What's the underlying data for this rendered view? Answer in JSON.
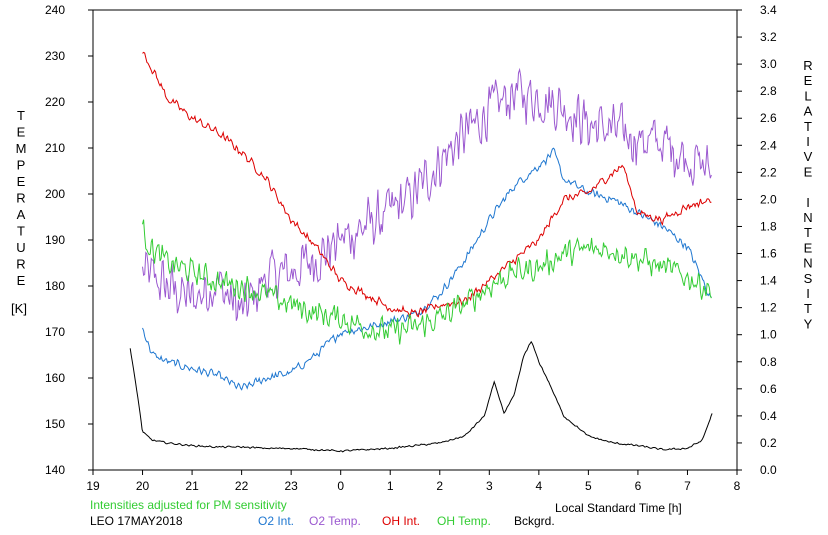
{
  "chart_data": {
    "type": "line",
    "left_axis_label": "TEMPERATURE",
    "left_axis_unit": "[K]",
    "right_axis_label": "RELATIVE INTENSITY",
    "xlabel": "Local Standard Time [h]",
    "note": "Intensities adjusted for PM sensitivity",
    "footer_label": "LEO 17MAY2018",
    "x_ticks": [
      "19",
      "20",
      "21",
      "22",
      "23",
      "0",
      "1",
      "2",
      "3",
      "4",
      "5",
      "6",
      "7",
      "8"
    ],
    "xlim": [
      -5,
      8
    ],
    "left_ticks": [
      140,
      150,
      160,
      170,
      180,
      190,
      200,
      210,
      220,
      230,
      240
    ],
    "ylim_left": [
      140,
      240
    ],
    "right_ticks": [
      "0.0",
      "0.2",
      "0.4",
      "0.6",
      "0.8",
      "1.0",
      "1.2",
      "1.4",
      "1.6",
      "1.8",
      "2.0",
      "2.2",
      "2.4",
      "2.6",
      "2.8",
      "3.0",
      "3.2",
      "3.4"
    ],
    "ylim_right": [
      0,
      3.4
    ],
    "legend": [
      {
        "label": "O2 Int.",
        "color": "#1f77d0"
      },
      {
        "label": "O2 Temp.",
        "color": "#9b59d0"
      },
      {
        "label": "OH Int.",
        "color": "#dd0000"
      },
      {
        "label": "OH Temp.",
        "color": "#33cc33"
      },
      {
        "label": "Bckgrd.",
        "color": "#000000"
      }
    ],
    "series": [
      {
        "key": "o2temp",
        "axis": "left",
        "color": "#9b59d0",
        "amp": 7,
        "x": [
          -4.0,
          -3.5,
          -3.0,
          -2.5,
          -2.0,
          -1.5,
          -1.0,
          -0.5,
          0.0,
          0.5,
          1.0,
          1.5,
          2.0,
          2.5,
          3.0,
          3.5,
          4.0,
          4.5,
          5.0,
          5.5,
          6.0,
          6.5,
          7.0,
          7.5
        ],
        "y": [
          183,
          180,
          177,
          181,
          174,
          182,
          183,
          186,
          190,
          193,
          196,
          200,
          207,
          213,
          218,
          222,
          221,
          219,
          215,
          214,
          212,
          211,
          208,
          205
        ]
      },
      {
        "key": "o2int",
        "axis": "right",
        "color": "#1f77d0",
        "amp": 0.04,
        "x": [
          -4.0,
          -3.8,
          -3.5,
          -3.0,
          -2.5,
          -2.0,
          -1.5,
          -1.0,
          -0.5,
          0.0,
          0.5,
          1.0,
          1.5,
          2.0,
          2.5,
          3.0,
          3.5,
          4.0,
          4.3,
          4.5,
          5.0,
          5.5,
          6.0,
          6.5,
          7.0,
          7.5
        ],
        "y": [
          1.05,
          0.85,
          0.8,
          0.75,
          0.7,
          0.6,
          0.68,
          0.72,
          0.85,
          1.02,
          1.05,
          1.1,
          1.15,
          1.3,
          1.55,
          1.85,
          2.1,
          2.25,
          2.35,
          2.15,
          2.05,
          2.0,
          1.9,
          1.8,
          1.65,
          1.25
        ]
      },
      {
        "key": "ohint",
        "axis": "right",
        "color": "#dd0000",
        "amp": 0.04,
        "x": [
          -4.0,
          -3.5,
          -3.0,
          -2.5,
          -2.0,
          -1.5,
          -1.0,
          -0.5,
          0.0,
          0.5,
          1.0,
          1.5,
          2.0,
          2.5,
          3.0,
          3.5,
          4.0,
          4.5,
          5.0,
          5.5,
          5.7,
          6.0,
          6.5,
          7.0,
          7.5
        ],
        "y": [
          3.1,
          2.75,
          2.6,
          2.5,
          2.35,
          2.15,
          1.85,
          1.65,
          1.4,
          1.3,
          1.2,
          1.15,
          1.22,
          1.25,
          1.4,
          1.55,
          1.7,
          2.0,
          2.05,
          2.2,
          2.25,
          1.9,
          1.85,
          1.95,
          2.0
        ]
      },
      {
        "key": "ohtemp",
        "axis": "left",
        "color": "#33cc33",
        "amp": 3.5,
        "x": [
          -4.0,
          -3.8,
          -3.5,
          -3.0,
          -2.5,
          -2.0,
          -1.5,
          -1.0,
          -0.5,
          0.0,
          0.5,
          1.0,
          1.5,
          2.0,
          2.5,
          3.0,
          3.5,
          4.0,
          4.5,
          5.0,
          5.5,
          6.0,
          6.5,
          7.0,
          7.5
        ],
        "y": [
          192,
          188,
          185,
          183,
          181,
          180,
          178,
          176,
          174,
          173,
          171,
          170,
          171,
          173,
          176,
          180,
          183,
          184,
          187,
          188,
          188,
          186,
          184,
          182,
          179
        ]
      },
      {
        "key": "bckgrd",
        "axis": "right",
        "color": "#000000",
        "amp": 0.008,
        "x": [
          -4.25,
          -4.1,
          -4.0,
          -3.8,
          -3.5,
          -3.0,
          -2.5,
          -2.0,
          -1.5,
          -1.0,
          -0.5,
          0.0,
          0.5,
          1.0,
          1.5,
          2.0,
          2.5,
          2.9,
          3.1,
          3.3,
          3.5,
          3.7,
          3.85,
          4.0,
          4.2,
          4.5,
          5.0,
          5.5,
          6.0,
          6.5,
          7.0,
          7.3,
          7.5
        ],
        "y": [
          0.9,
          0.55,
          0.28,
          0.22,
          0.2,
          0.18,
          0.17,
          0.17,
          0.16,
          0.16,
          0.15,
          0.14,
          0.15,
          0.16,
          0.18,
          0.2,
          0.25,
          0.4,
          0.65,
          0.42,
          0.55,
          0.85,
          0.95,
          0.8,
          0.65,
          0.4,
          0.25,
          0.2,
          0.18,
          0.15,
          0.16,
          0.22,
          0.42
        ]
      }
    ]
  }
}
